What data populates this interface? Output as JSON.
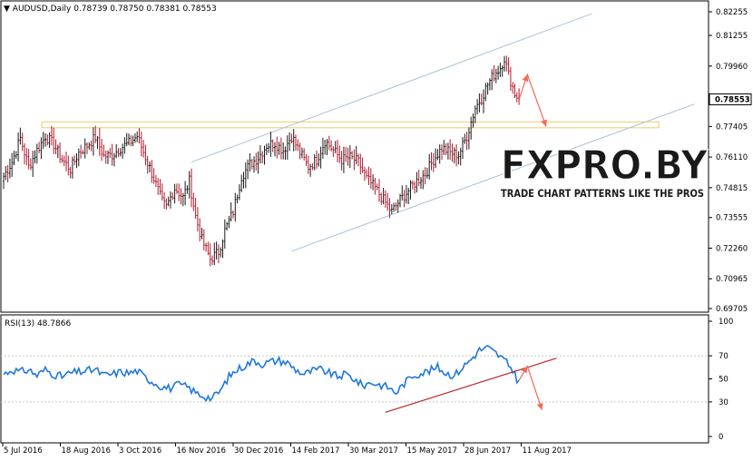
{
  "chart_data": [
    {
      "panel": "price",
      "type": "bar",
      "title": "AUDUSD,Daily",
      "ohlc_text": "0.78739 0.78750 0.78381 0.78553",
      "last_price_label": "0.78553",
      "y_ticks": [
        "0.82255",
        "0.81255",
        "0.79960",
        "0.78553",
        "0.77405",
        "0.76110",
        "0.74815",
        "0.73555",
        "0.72260",
        "0.70965",
        "0.69705"
      ],
      "ylim": [
        0.69705,
        0.82255
      ],
      "x_labels": [
        "5 Jul 2016",
        "18 Aug 2016",
        "3 Oct 2016",
        "16 Nov 2016",
        "30 Dec 2016",
        "14 Feb 2017",
        "30 Mar 2017",
        "15 May 2017",
        "28 Jun 2017",
        "11 Aug 2017"
      ],
      "grid": false,
      "up_color": "#1a1a1a",
      "down_color": "#b2182b",
      "close_path": [
        [
          0,
          0.753
        ],
        [
          4,
          0.759
        ],
        [
          8,
          0.769
        ],
        [
          12,
          0.757
        ],
        [
          16,
          0.764
        ],
        [
          20,
          0.77
        ],
        [
          24,
          0.7665
        ],
        [
          28,
          0.76
        ],
        [
          32,
          0.756
        ],
        [
          36,
          0.763
        ],
        [
          40,
          0.766
        ],
        [
          44,
          0.7695
        ],
        [
          48,
          0.7615
        ],
        [
          52,
          0.762
        ],
        [
          56,
          0.765
        ],
        [
          60,
          0.767
        ],
        [
          64,
          0.77
        ],
        [
          68,
          0.761
        ],
        [
          72,
          0.752
        ],
        [
          76,
          0.742
        ],
        [
          78,
          0.74
        ],
        [
          82,
          0.748
        ],
        [
          86,
          0.744
        ],
        [
          89,
          0.751
        ],
        [
          92,
          0.736
        ],
        [
          95,
          0.726
        ],
        [
          99,
          0.718
        ],
        [
          103,
          0.721
        ],
        [
          106,
          0.73
        ],
        [
          110,
          0.738
        ],
        [
          114,
          0.753
        ],
        [
          118,
          0.758
        ],
        [
          122,
          0.761
        ],
        [
          126,
          0.766
        ],
        [
          130,
          0.767
        ],
        [
          134,
          0.764
        ],
        [
          138,
          0.77
        ],
        [
          142,
          0.763
        ],
        [
          146,
          0.757
        ],
        [
          150,
          0.76
        ],
        [
          154,
          0.768
        ],
        [
          158,
          0.764
        ],
        [
          162,
          0.76
        ],
        [
          166,
          0.761
        ],
        [
          170,
          0.759
        ],
        [
          174,
          0.752
        ],
        [
          178,
          0.748
        ],
        [
          182,
          0.743
        ],
        [
          186,
          0.738
        ],
        [
          190,
          0.743
        ],
        [
          194,
          0.747
        ],
        [
          198,
          0.751
        ],
        [
          202,
          0.754
        ],
        [
          206,
          0.76
        ],
        [
          210,
          0.765
        ],
        [
          214,
          0.763
        ],
        [
          218,
          0.762
        ],
        [
          222,
          0.77
        ],
        [
          226,
          0.782
        ],
        [
          229,
          0.786
        ],
        [
          232,
          0.792
        ],
        [
          235,
          0.796
        ],
        [
          238,
          0.799
        ],
        [
          240,
          0.803
        ],
        [
          242,
          0.796
        ],
        [
          245,
          0.788
        ],
        [
          247,
          0.7855
        ]
      ],
      "annotations": {
        "channel_upper": [
          [
            90,
            0.759
          ],
          [
            282,
            0.8218
          ]
        ],
        "channel_lower": [
          [
            138,
            0.7213
          ],
          [
            331,
            0.7835
          ]
        ],
        "resistance_zone": [
          0.7735,
          0.776
        ],
        "forecast_arrows": [
          [
            [
              247,
              0.7855
            ],
            [
              251,
              0.796
            ],
            [
              260,
              0.774
            ]
          ]
        ],
        "logo_main": "FXPRO.BY",
        "logo_tagline": "TRADE CHART PATTERNS LIKE THE PROS"
      }
    },
    {
      "panel": "rsi",
      "type": "line",
      "title": "RSI(13) 48.7866",
      "ylim": [
        0,
        100
      ],
      "y_ticks": [
        "100",
        "70",
        "50",
        "30",
        "0"
      ],
      "series": [
        {
          "color": "#1e78dc",
          "points": [
            [
              0,
              54
            ],
            [
              4,
              58
            ],
            [
              8,
              56
            ],
            [
              12,
              58
            ],
            [
              16,
              53
            ],
            [
              20,
              58
            ],
            [
              24,
              54
            ],
            [
              28,
              52
            ],
            [
              32,
              55
            ],
            [
              36,
              56
            ],
            [
              40,
              57
            ],
            [
              44,
              58
            ],
            [
              48,
              53
            ],
            [
              52,
              54
            ],
            [
              56,
              56
            ],
            [
              60,
              55
            ],
            [
              64,
              57
            ],
            [
              68,
              51
            ],
            [
              72,
              47
            ],
            [
              76,
              43
            ],
            [
              80,
              42
            ],
            [
              84,
              45
            ],
            [
              88,
              43
            ],
            [
              92,
              38
            ],
            [
              96,
              35
            ],
            [
              100,
              33
            ],
            [
              104,
              40
            ],
            [
              108,
              52
            ],
            [
              112,
              58
            ],
            [
              116,
              62
            ],
            [
              120,
              66
            ],
            [
              124,
              63
            ],
            [
              128,
              65
            ],
            [
              132,
              66
            ],
            [
              136,
              64
            ],
            [
              140,
              58
            ],
            [
              144,
              54
            ],
            [
              148,
              57
            ],
            [
              152,
              58
            ],
            [
              156,
              55
            ],
            [
              160,
              52
            ],
            [
              164,
              54
            ],
            [
              168,
              50
            ],
            [
              172,
              44
            ],
            [
              176,
              47
            ],
            [
              180,
              45
            ],
            [
              184,
              43
            ],
            [
              188,
              38
            ],
            [
              192,
              46
            ],
            [
              196,
              53
            ],
            [
              200,
              55
            ],
            [
              204,
              57
            ],
            [
              208,
              60
            ],
            [
              212,
              55
            ],
            [
              216,
              53
            ],
            [
              220,
              60
            ],
            [
              224,
              67
            ],
            [
              228,
              75
            ],
            [
              232,
              77
            ],
            [
              236,
              72
            ],
            [
              240,
              66
            ],
            [
              244,
              58
            ],
            [
              246,
              50
            ],
            [
              247,
              48.8
            ]
          ]
        }
      ],
      "annotations": {
        "trend_line": [
          [
            183,
            21
          ],
          [
            265,
            68
          ]
        ],
        "forecast_arrows": [
          [
            [
              247,
              48.8
            ],
            [
              251,
              61
            ],
            [
              258,
              23
            ]
          ]
        ]
      }
    }
  ]
}
